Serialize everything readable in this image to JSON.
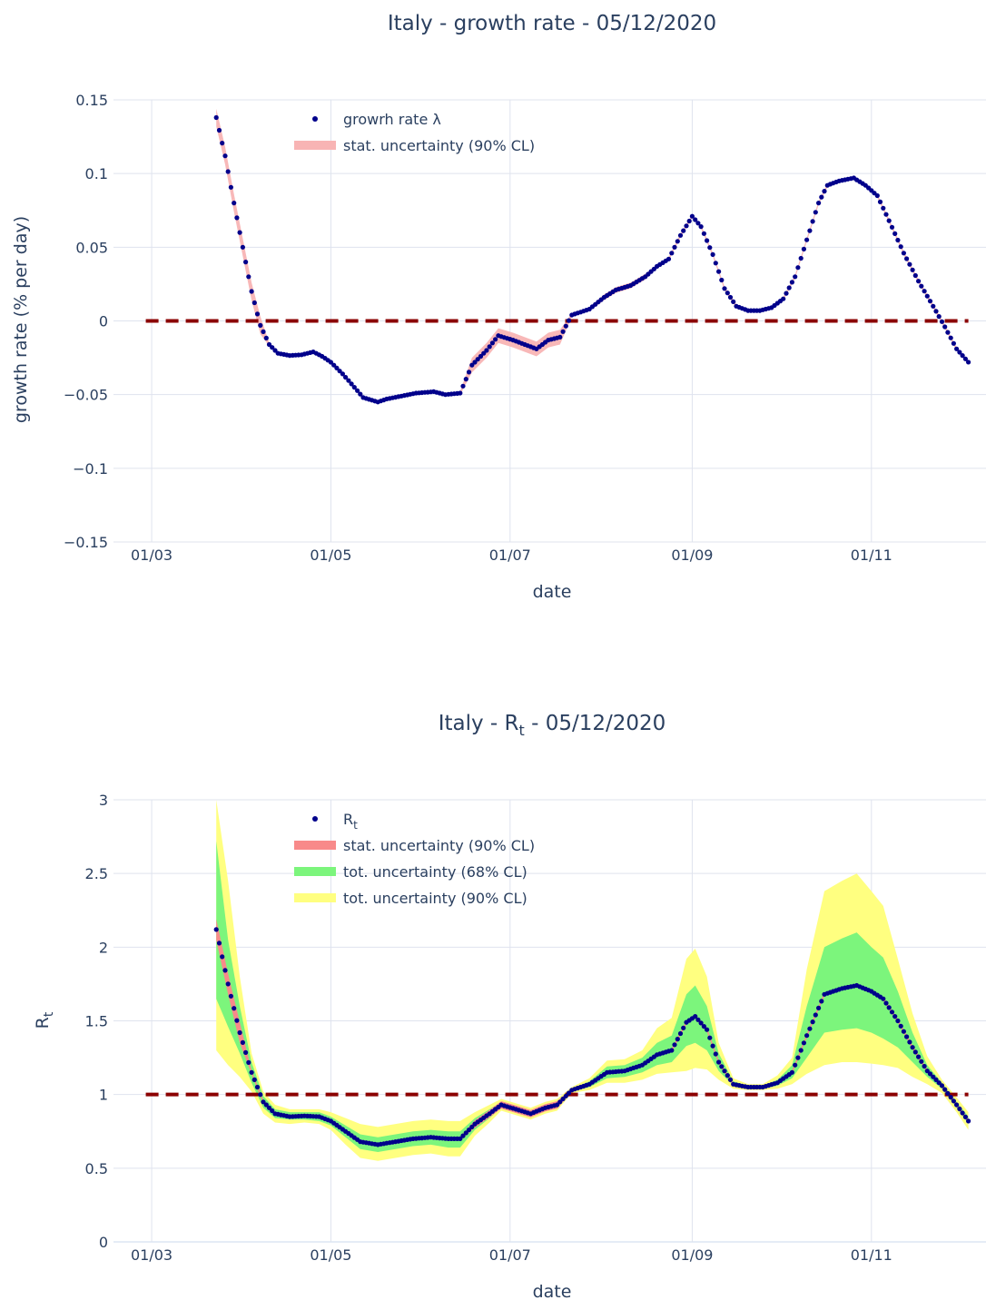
{
  "chart_data": [
    {
      "type": "scatter",
      "title": "Italy - growth rate - 05/12/2020",
      "xlabel": "date",
      "ylabel": "growth rate (% per day)",
      "x_ticks": [
        "01/03",
        "01/05",
        "01/07",
        "01/09",
        "01/11"
      ],
      "y_ticks": [
        "−0.15",
        "−0.1",
        "−0.05",
        "0",
        "0.05",
        "0.1",
        "0.15"
      ],
      "ylim": [
        -0.15,
        0.15
      ],
      "xlim": [
        "2020-02-17",
        "2020-12-10"
      ],
      "reference_line": {
        "y": 0,
        "x": [
          "2020-02-28",
          "2020-12-04"
        ],
        "color": "#8b0000",
        "style": "dashed"
      },
      "legend": [
        {
          "label": "growrh rate λ",
          "marker": "dot",
          "color": "#00008b"
        },
        {
          "label": "stat. uncertainty (90% CL)",
          "marker": "band",
          "color": "#f8b4b4"
        }
      ],
      "series": [
        {
          "name": "growrh rate λ",
          "color": "#00008b",
          "band_color": "#f8b4b4",
          "points": [
            [
              "2020-03-23",
              0.138
            ],
            [
              "2020-03-26",
              0.112
            ],
            [
              "2020-03-29",
              0.08
            ],
            [
              "2020-04-01",
              0.05
            ],
            [
              "2020-04-04",
              0.02
            ],
            [
              "2020-04-07",
              -0.003
            ],
            [
              "2020-04-10",
              -0.016
            ],
            [
              "2020-04-13",
              -0.022
            ],
            [
              "2020-04-17",
              -0.0235
            ],
            [
              "2020-04-21",
              -0.023
            ],
            [
              "2020-04-25",
              -0.021
            ],
            [
              "2020-04-28",
              -0.024
            ],
            [
              "2020-05-01",
              -0.028
            ],
            [
              "2020-05-05",
              -0.036
            ],
            [
              "2020-05-09",
              -0.045
            ],
            [
              "2020-05-12",
              -0.052
            ],
            [
              "2020-05-17",
              -0.055
            ],
            [
              "2020-05-20",
              -0.053
            ],
            [
              "2020-05-25",
              -0.051
            ],
            [
              "2020-05-30",
              -0.049
            ],
            [
              "2020-06-05",
              -0.048
            ],
            [
              "2020-06-09",
              -0.05
            ],
            [
              "2020-06-14",
              -0.049
            ],
            [
              "2020-06-18",
              -0.03
            ],
            [
              "2020-06-23",
              -0.02
            ],
            [
              "2020-06-27",
              -0.01
            ],
            [
              "2020-07-02",
              -0.013
            ],
            [
              "2020-07-06",
              -0.016
            ],
            [
              "2020-07-10",
              -0.019
            ],
            [
              "2020-07-14",
              -0.013
            ],
            [
              "2020-07-18",
              -0.011
            ],
            [
              "2020-07-22",
              0.004
            ],
            [
              "2020-07-28",
              0.008
            ],
            [
              "2020-08-02",
              0.016
            ],
            [
              "2020-08-06",
              0.021
            ],
            [
              "2020-08-11",
              0.024
            ],
            [
              "2020-08-16",
              0.03
            ],
            [
              "2020-08-20",
              0.037
            ],
            [
              "2020-08-24",
              0.042
            ],
            [
              "2020-08-28",
              0.058
            ],
            [
              "2020-09-01",
              0.071
            ],
            [
              "2020-09-04",
              0.064
            ],
            [
              "2020-09-08",
              0.045
            ],
            [
              "2020-09-12",
              0.022
            ],
            [
              "2020-09-16",
              0.01
            ],
            [
              "2020-09-20",
              0.007
            ],
            [
              "2020-09-24",
              0.007
            ],
            [
              "2020-09-28",
              0.009
            ],
            [
              "2020-10-02",
              0.015
            ],
            [
              "2020-10-06",
              0.03
            ],
            [
              "2020-10-10",
              0.055
            ],
            [
              "2020-10-14",
              0.08
            ],
            [
              "2020-10-17",
              0.092
            ],
            [
              "2020-10-21",
              0.095
            ],
            [
              "2020-10-26",
              0.097
            ],
            [
              "2020-10-30",
              0.092
            ],
            [
              "2020-11-03",
              0.085
            ],
            [
              "2020-11-07",
              0.068
            ],
            [
              "2020-11-12",
              0.046
            ],
            [
              "2020-11-17",
              0.027
            ],
            [
              "2020-11-22",
              0.01
            ],
            [
              "2020-11-26",
              -0.004
            ],
            [
              "2020-11-30",
              -0.019
            ],
            [
              "2020-12-04",
              -0.028
            ]
          ]
        }
      ]
    },
    {
      "type": "scatter",
      "title": "Italy - ",
      "title_symbol": "R",
      "title_sub": "t",
      "title_tail": " - 05/12/2020",
      "xlabel": "date",
      "ylabel": "R",
      "ylabel_sub": "t",
      "x_ticks": [
        "01/03",
        "01/05",
        "01/07",
        "01/09",
        "01/11"
      ],
      "y_ticks": [
        "0",
        "0.5",
        "1",
        "1.5",
        "2",
        "2.5",
        "3"
      ],
      "ylim": [
        0,
        3
      ],
      "xlim": [
        "2020-02-17",
        "2020-12-10"
      ],
      "reference_line": {
        "y": 1,
        "x": [
          "2020-02-28",
          "2020-12-04"
        ],
        "color": "#8b0000",
        "style": "dashed"
      },
      "legend": [
        {
          "label": "R",
          "label_sub": "t",
          "marker": "dot",
          "color": "#00008b"
        },
        {
          "label": "stat. uncertainty (90% CL)",
          "marker": "band",
          "color": "#f88a8a"
        },
        {
          "label": "tot. uncertainty (68% CL)",
          "marker": "band",
          "color": "#7cf57c"
        },
        {
          "label": "tot. uncertainty (90% CL)",
          "marker": "band",
          "color": "#ffff80"
        }
      ],
      "series": [
        {
          "name": "R",
          "name_sub": "t",
          "color": "#00008b",
          "band_colors": {
            "stat_90": "#f88a8a",
            "tot_68": "#7cf57c",
            "tot_90": "#ffff80"
          },
          "points": [
            [
              "2020-03-23",
              2.12,
              1.65,
              2.72,
              1.3,
              3.0
            ],
            [
              "2020-03-27",
              1.75,
              1.46,
              2.05,
              1.2,
              2.45
            ],
            [
              "2020-03-31",
              1.42,
              1.28,
              1.6,
              1.12,
              1.8
            ],
            [
              "2020-04-04",
              1.15,
              1.08,
              1.22,
              1.02,
              1.28
            ],
            [
              "2020-04-08",
              0.95,
              0.91,
              0.99,
              0.87,
              1.02
            ],
            [
              "2020-04-12",
              0.87,
              0.84,
              0.9,
              0.81,
              0.93
            ],
            [
              "2020-04-17",
              0.85,
              0.83,
              0.88,
              0.8,
              0.9
            ],
            [
              "2020-04-22",
              0.855,
              0.83,
              0.88,
              0.81,
              0.9
            ],
            [
              "2020-04-27",
              0.85,
              0.82,
              0.88,
              0.8,
              0.9
            ],
            [
              "2020-05-01",
              0.82,
              0.79,
              0.85,
              0.76,
              0.88
            ],
            [
              "2020-05-06",
              0.75,
              0.71,
              0.79,
              0.66,
              0.84
            ],
            [
              "2020-05-11",
              0.68,
              0.63,
              0.73,
              0.57,
              0.8
            ],
            [
              "2020-05-17",
              0.66,
              0.61,
              0.71,
              0.55,
              0.78
            ],
            [
              "2020-05-23",
              0.68,
              0.63,
              0.73,
              0.57,
              0.8
            ],
            [
              "2020-05-29",
              0.7,
              0.65,
              0.75,
              0.59,
              0.82
            ],
            [
              "2020-06-04",
              0.71,
              0.66,
              0.76,
              0.6,
              0.83
            ],
            [
              "2020-06-10",
              0.7,
              0.64,
              0.75,
              0.58,
              0.82
            ],
            [
              "2020-06-14",
              0.7,
              0.64,
              0.75,
              0.58,
              0.82
            ],
            [
              "2020-06-19",
              0.8,
              0.76,
              0.84,
              0.72,
              0.88
            ],
            [
              "2020-06-24",
              0.87,
              0.84,
              0.9,
              0.81,
              0.93
            ],
            [
              "2020-06-28",
              0.93,
              0.91,
              0.95,
              0.89,
              0.97
            ],
            [
              "2020-07-03",
              0.9,
              0.88,
              0.92,
              0.86,
              0.94
            ],
            [
              "2020-07-08",
              0.87,
              0.85,
              0.89,
              0.83,
              0.91
            ],
            [
              "2020-07-13",
              0.91,
              0.89,
              0.93,
              0.87,
              0.95
            ],
            [
              "2020-07-17",
              0.93,
              0.91,
              0.95,
              0.89,
              0.97
            ],
            [
              "2020-07-22",
              1.03,
              1.02,
              1.04,
              1.01,
              1.05
            ],
            [
              "2020-07-28",
              1.07,
              1.05,
              1.09,
              1.03,
              1.11
            ],
            [
              "2020-08-03",
              1.15,
              1.11,
              1.19,
              1.08,
              1.23
            ],
            [
              "2020-08-09",
              1.16,
              1.12,
              1.2,
              1.08,
              1.24
            ],
            [
              "2020-08-15",
              1.2,
              1.15,
              1.25,
              1.1,
              1.3
            ],
            [
              "2020-08-20",
              1.27,
              1.2,
              1.35,
              1.14,
              1.45
            ],
            [
              "2020-08-25",
              1.3,
              1.22,
              1.4,
              1.15,
              1.52
            ],
            [
              "2020-08-30",
              1.49,
              1.33,
              1.68,
              1.16,
              1.92
            ],
            [
              "2020-09-02",
              1.53,
              1.35,
              1.74,
              1.18,
              1.99
            ],
            [
              "2020-09-06",
              1.44,
              1.3,
              1.6,
              1.17,
              1.8
            ],
            [
              "2020-09-10",
              1.22,
              1.16,
              1.28,
              1.1,
              1.35
            ],
            [
              "2020-09-15",
              1.07,
              1.06,
              1.09,
              1.04,
              1.11
            ],
            [
              "2020-09-20",
              1.05,
              1.04,
              1.06,
              1.03,
              1.07
            ],
            [
              "2020-09-25",
              1.05,
              1.04,
              1.06,
              1.03,
              1.07
            ],
            [
              "2020-09-30",
              1.08,
              1.06,
              1.1,
              1.04,
              1.13
            ],
            [
              "2020-10-05",
              1.15,
              1.11,
              1.2,
              1.07,
              1.25
            ],
            [
              "2020-10-10",
              1.4,
              1.25,
              1.6,
              1.14,
              1.85
            ],
            [
              "2020-10-16",
              1.68,
              1.42,
              2.0,
              1.2,
              2.38
            ],
            [
              "2020-10-22",
              1.72,
              1.44,
              2.06,
              1.22,
              2.45
            ],
            [
              "2020-10-27",
              1.74,
              1.45,
              2.1,
              1.22,
              2.5
            ],
            [
              "2020-11-01",
              1.7,
              1.42,
              2.0,
              1.21,
              2.38
            ],
            [
              "2020-11-05",
              1.65,
              1.38,
              1.93,
              1.2,
              2.28
            ],
            [
              "2020-11-10",
              1.5,
              1.32,
              1.7,
              1.18,
              1.92
            ],
            [
              "2020-11-15",
              1.32,
              1.22,
              1.42,
              1.12,
              1.55
            ],
            [
              "2020-11-20",
              1.16,
              1.12,
              1.2,
              1.07,
              1.26
            ],
            [
              "2020-11-25",
              1.06,
              1.04,
              1.08,
              1.01,
              1.1
            ],
            [
              "2020-11-30",
              0.93,
              0.91,
              0.95,
              0.88,
              0.98
            ],
            [
              "2020-12-04",
              0.82,
              0.8,
              0.85,
              0.76,
              0.88
            ]
          ]
        }
      ]
    }
  ]
}
